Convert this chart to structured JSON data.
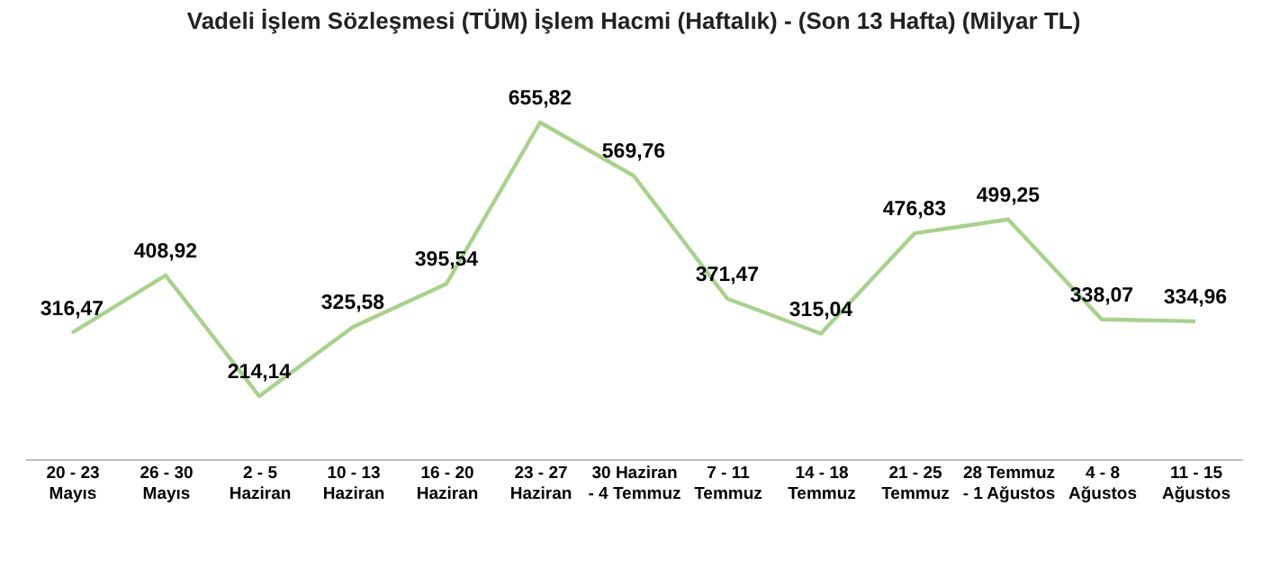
{
  "chart_data": {
    "type": "line",
    "title": "Vadeli İşlem Sözleşmesi (TÜM) İşlem Hacmi (Haftalık) - (Son 13 Hafta) (Milyar TL)",
    "categories": [
      "20 - 23\nMayıs",
      "26 - 30\nMayıs",
      "2 - 5\nHaziran",
      "10 - 13\nHaziran",
      "16 - 20\nHaziran",
      "23 - 27\nHaziran",
      "30 Haziran\n- 4 Temmuz",
      "7 - 11\nTemmuz",
      "14 - 18\nTemmuz",
      "21 - 25\nTemmuz",
      "28 Temmuz\n- 1 Ağustos",
      "4 - 8\nAğustos",
      "11 - 15\nAğustos"
    ],
    "series": [
      {
        "color": "#a9d18e",
        "values": [
          316.47,
          408.92,
          214.14,
          325.58,
          395.54,
          655.82,
          569.76,
          371.47,
          315.04,
          476.83,
          499.25,
          338.07,
          334.96
        ],
        "value_labels": [
          "316,47",
          "408,92",
          "214,14",
          "325,58",
          "395,54",
          "655,82",
          "569,76",
          "371,47",
          "315,04",
          "476,83",
          "499,25",
          "338,07",
          "334,96"
        ]
      }
    ],
    "grid": false,
    "marker": "none",
    "line_style": "solid"
  }
}
